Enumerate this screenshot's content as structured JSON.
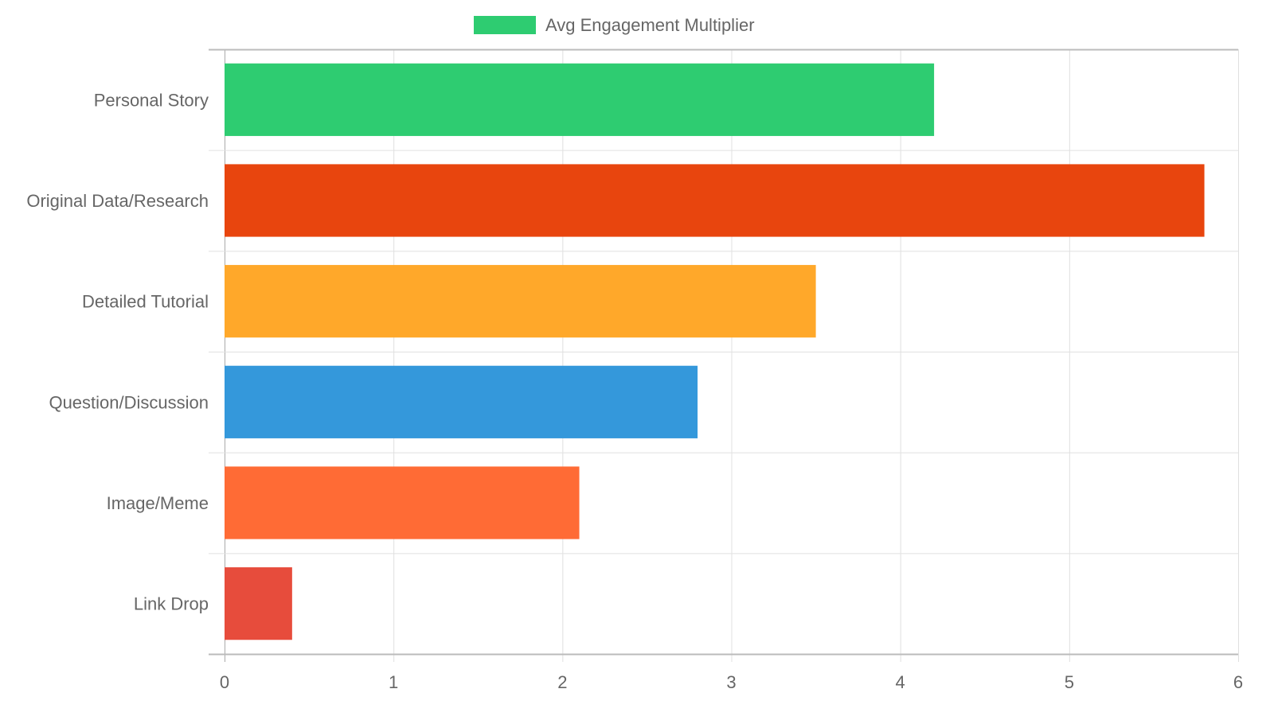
{
  "chart_data": {
    "type": "bar",
    "orientation": "horizontal",
    "categories": [
      "Personal Story",
      "Original Data/Research",
      "Detailed Tutorial",
      "Question/Discussion",
      "Image/Meme",
      "Link Drop"
    ],
    "series": [
      {
        "name": "Avg Engagement Multiplier",
        "values": [
          4.2,
          5.8,
          3.5,
          2.8,
          2.1,
          0.4
        ]
      }
    ],
    "bar_colors": [
      "#2ecc71",
      "#e8450e",
      "#ffa82a",
      "#3498db",
      "#ff6b35",
      "#e74c3c"
    ],
    "legend_color": "#2ecc71",
    "xlim": [
      0,
      6
    ],
    "x_ticks": [
      "0",
      "1",
      "2",
      "3",
      "4",
      "5",
      "6"
    ],
    "title": "",
    "xlabel": "",
    "ylabel": "",
    "grid": true,
    "legend_position": "top"
  }
}
